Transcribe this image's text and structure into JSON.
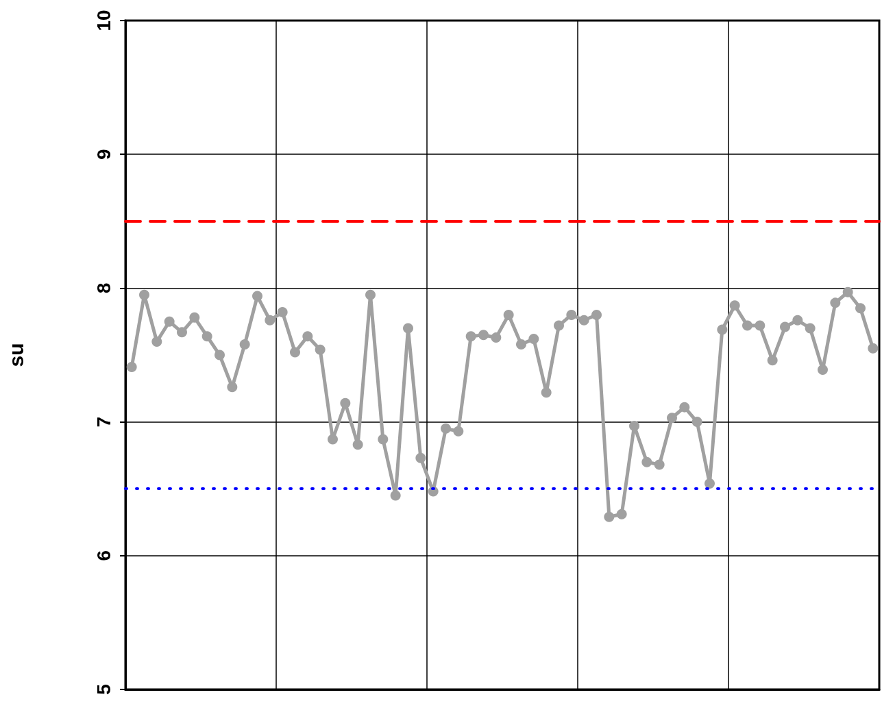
{
  "chart_data": {
    "type": "line",
    "ylabel": "su",
    "categories": [
      null,
      null,
      null,
      null,
      null,
      null,
      null,
      null,
      null,
      null,
      null,
      null,
      null,
      null,
      null,
      null,
      null,
      null,
      null,
      null,
      null,
      null,
      null,
      null,
      null,
      null,
      null,
      null,
      null,
      null,
      null,
      null,
      null,
      null,
      null,
      null,
      null,
      null,
      null,
      null,
      null,
      null,
      null,
      null,
      null,
      null,
      null,
      null,
      null,
      null,
      null,
      null,
      null,
      null,
      null,
      null,
      null,
      null,
      null,
      null
    ],
    "ylim": [
      5,
      10
    ],
    "yticks": [
      5,
      6,
      7,
      8,
      9,
      10
    ],
    "tick_labels": "y",
    "grid": true,
    "marker": "circle",
    "line_style": "solid",
    "series": [
      {
        "color": "#a0a0a0",
        "values": [
          7.41,
          7.95,
          7.6,
          7.75,
          7.67,
          7.78,
          7.64,
          7.5,
          7.26,
          7.58,
          7.94,
          7.76,
          7.82,
          7.52,
          7.64,
          7.54,
          6.87,
          7.14,
          6.83,
          7.95,
          6.87,
          6.45,
          7.7,
          6.73,
          6.48,
          6.95,
          6.93,
          7.64,
          7.65,
          7.63,
          7.8,
          7.58,
          7.62,
          7.22,
          7.72,
          7.8,
          7.76,
          7.8,
          6.29,
          6.31,
          6.97,
          6.7,
          6.68,
          7.03,
          7.11,
          7.0,
          6.54,
          7.69,
          7.87,
          7.72,
          7.72,
          7.46,
          7.71,
          7.76,
          7.7,
          7.39,
          7.89,
          7.97,
          7.85,
          7.55
        ]
      }
    ],
    "ref_lines": [
      {
        "axis": "y",
        "value": 8.5,
        "color": "#ff0000",
        "line_style": "dashed"
      },
      {
        "axis": "y",
        "value": 6.5,
        "color": "#0000ff",
        "line_style": "dotted"
      }
    ]
  }
}
